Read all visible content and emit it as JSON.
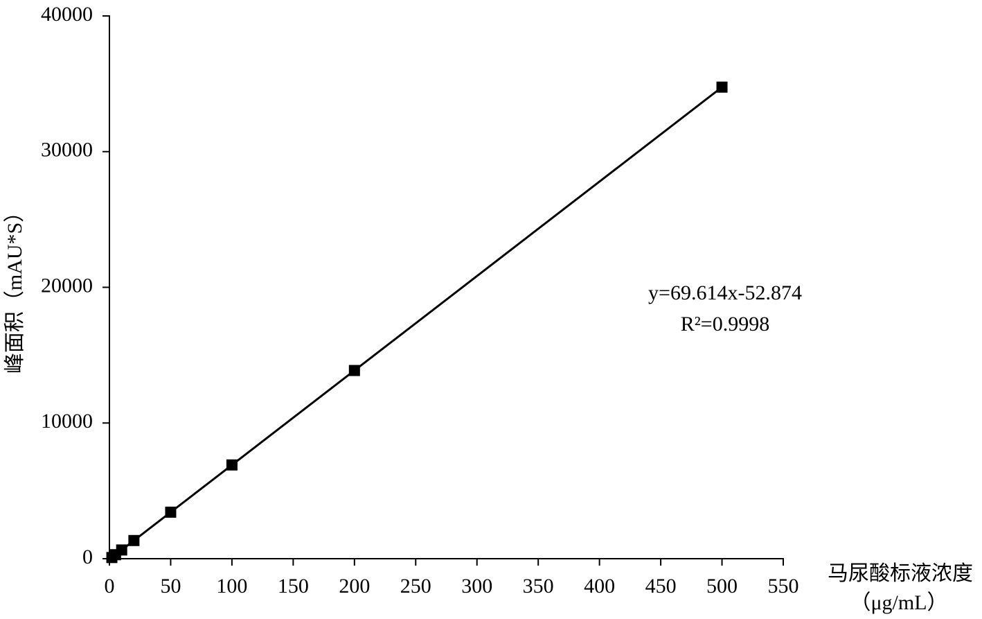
{
  "chart_data": {
    "type": "scatter",
    "x_label": "马尿酸标液浓度",
    "x_label_unit": "（μg/mL）",
    "y_label": "峰面积（mAU*S）",
    "annotations": [
      "y=69.614x-52.874",
      "R²=0.9998"
    ],
    "x": [
      2,
      5,
      10,
      20,
      50,
      100,
      200,
      500
    ],
    "series": [
      {
        "name": "峰面积",
        "color": "#000000",
        "values": [
          86,
          295,
          643,
          1339,
          3428,
          6909,
          13870,
          34754
        ]
      }
    ],
    "xlim": [
      0,
      550
    ],
    "xticks": [
      0,
      50,
      100,
      150,
      200,
      250,
      300,
      350,
      400,
      450,
      500,
      550
    ],
    "ylim": [
      0,
      40000
    ],
    "yticks": [
      0,
      10000,
      20000,
      30000,
      40000
    ],
    "grid": false
  }
}
